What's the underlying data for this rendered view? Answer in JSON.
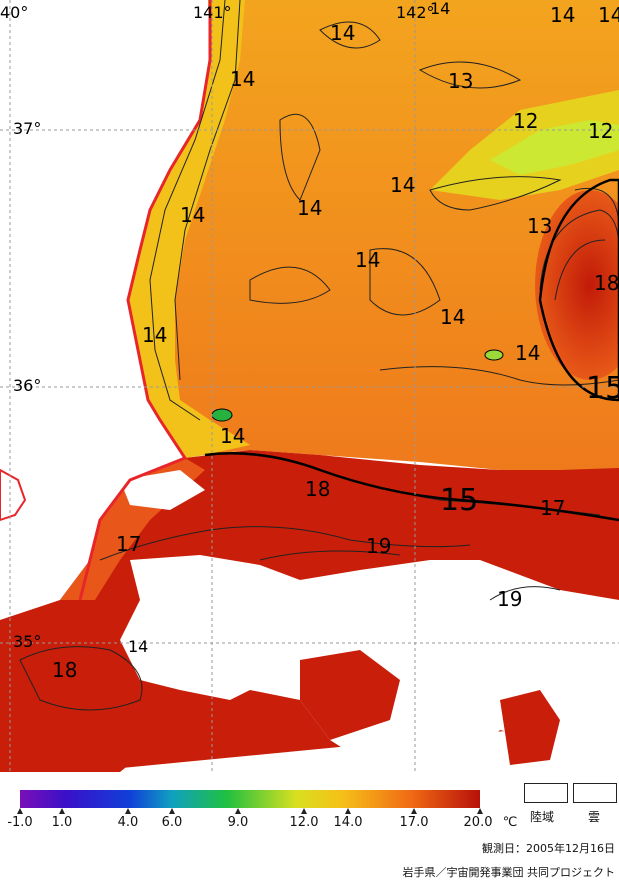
{
  "map": {
    "lon_labels": [
      "40°",
      "141°",
      "142°"
    ],
    "lat_labels": [
      "37°",
      "36°",
      "35°"
    ],
    "contour_labels": [
      "14",
      "14",
      "14",
      "14",
      "14",
      "14",
      "14",
      "14",
      "14",
      "14",
      "14",
      "14",
      "14",
      "13",
      "13",
      "12",
      "12",
      "18",
      "14",
      "15",
      "18",
      "15",
      "17",
      "17",
      "19",
      "19",
      "18",
      "14"
    ],
    "colors": {
      "land_outline": "#e8262a",
      "warm": "#c81e0a",
      "mid": "#f07a1c",
      "cool": "#f2c21a",
      "cold": "#cde832"
    }
  },
  "legend": {
    "ticks": [
      "-1.0",
      "1.0",
      "4.0",
      "6.0",
      "9.0",
      "12.0",
      "14.0",
      "17.0",
      "20.0"
    ],
    "unit": "℃",
    "land_label": "陸域",
    "cloud_label": "雲",
    "observation_date": "観測日：2005年12月16日",
    "credit": "岩手県／宇宙開発事業団 共同プロジェクト"
  }
}
